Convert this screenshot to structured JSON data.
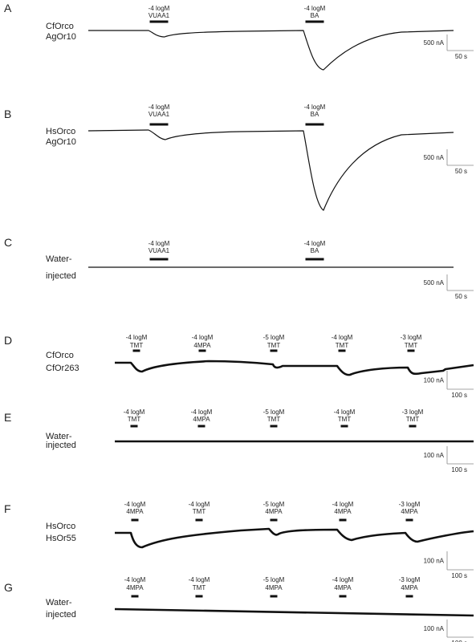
{
  "panels": [
    {
      "letter": "A",
      "label": [
        "CfOrco",
        "AgOr10"
      ],
      "stimuli": [
        {
          "conc": "-4 logM",
          "name": "VUAA1"
        },
        {
          "conc": "-4 logM",
          "name": "BA"
        }
      ],
      "scale": {
        "current": "500 nA",
        "time": "50 s"
      }
    },
    {
      "letter": "B",
      "label": [
        "HsOrco",
        "AgOr10"
      ],
      "stimuli": [
        {
          "conc": "-4 logM",
          "name": "VUAA1"
        },
        {
          "conc": "-4 logM",
          "name": "BA"
        }
      ],
      "scale": {
        "current": "500 nA",
        "time": "50 s"
      }
    },
    {
      "letter": "C",
      "label": [
        "Water-",
        "injected"
      ],
      "stimuli": [
        {
          "conc": "-4 logM",
          "name": "VUAA1"
        },
        {
          "conc": "-4 logM",
          "name": "BA"
        }
      ],
      "scale": {
        "current": "500 nA",
        "time": "50 s"
      }
    },
    {
      "letter": "D",
      "label": [
        "CfOrco",
        "CfOr263"
      ],
      "stimuli": [
        {
          "conc": "-4 logM",
          "name": "TMT"
        },
        {
          "conc": "-4 logM",
          "name": "4MPA"
        },
        {
          "conc": "-5 logM",
          "name": "TMT"
        },
        {
          "conc": "-4 logM",
          "name": "TMT"
        },
        {
          "conc": "-3 logM",
          "name": "TMT"
        }
      ],
      "scale": {
        "current": "100 nA",
        "time": "100 s"
      }
    },
    {
      "letter": "E",
      "label": [
        "Water-",
        "injected"
      ],
      "stimuli": [
        {
          "conc": "-4 logM",
          "name": "TMT"
        },
        {
          "conc": "-4 logM",
          "name": "4MPA"
        },
        {
          "conc": "-5 logM",
          "name": "TMT"
        },
        {
          "conc": "-4 logM",
          "name": "TMT"
        },
        {
          "conc": "-3 logM",
          "name": "TMT"
        }
      ],
      "scale": {
        "current": "100 nA",
        "time": "100 s"
      }
    },
    {
      "letter": "F",
      "label": [
        "HsOrco",
        "HsOr55"
      ],
      "stimuli": [
        {
          "conc": "-4 logM",
          "name": "4MPA"
        },
        {
          "conc": "-4 logM",
          "name": "TMT"
        },
        {
          "conc": "-5 logM",
          "name": "4MPA"
        },
        {
          "conc": "-4 logM",
          "name": "4MPA"
        },
        {
          "conc": "-3 logM",
          "name": "4MPA"
        }
      ],
      "scale": {
        "current": "100 nA",
        "time": "100 s"
      }
    },
    {
      "letter": "G",
      "label": [
        "Water-",
        "injected"
      ],
      "stimuli": [
        {
          "conc": "-4 logM",
          "name": "4MPA"
        },
        {
          "conc": "-4 logM",
          "name": "TMT"
        },
        {
          "conc": "-5 logM",
          "name": "4MPA"
        },
        {
          "conc": "-4 logM",
          "name": "4MPA"
        },
        {
          "conc": "-3 logM",
          "name": "4MPA"
        }
      ],
      "scale": {
        "current": "100 nA",
        "time": "100 s"
      }
    }
  ]
}
